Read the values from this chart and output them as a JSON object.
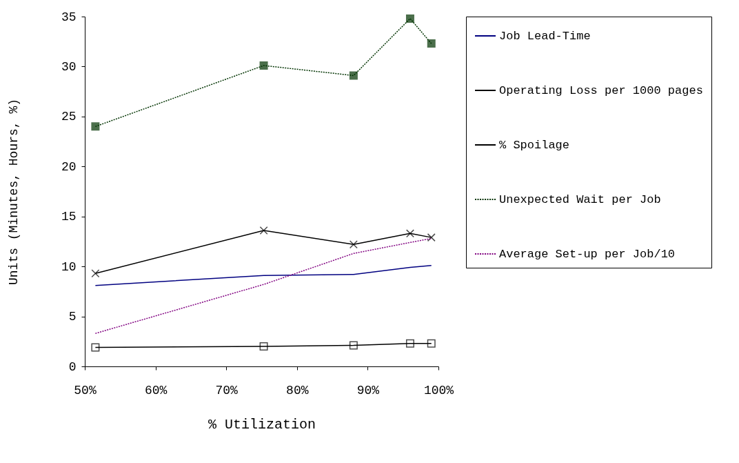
{
  "chart_data": {
    "type": "line",
    "xlabel": "% Utilization",
    "ylabel": "Units (Minutes, Hours, %)",
    "xlim": [
      50,
      100
    ],
    "xticks": [
      {
        "value": 50,
        "label": "50%"
      },
      {
        "value": 60,
        "label": "60%"
      },
      {
        "value": 70,
        "label": "70%"
      },
      {
        "value": 80,
        "label": "80%"
      },
      {
        "value": 90,
        "label": "90%"
      },
      {
        "value": 100,
        "label": "100%"
      }
    ],
    "ylim": [
      0,
      35
    ],
    "yticks": [
      0,
      5,
      10,
      15,
      20,
      25,
      30,
      35
    ],
    "grid": false,
    "legend": "right",
    "x": [
      51.5,
      75.3,
      88,
      96,
      99
    ],
    "series": [
      {
        "name": "Job Lead-Time",
        "color": "#000080",
        "line_style": "solid",
        "marker": "none",
        "values": [
          8.1,
          9.1,
          9.2,
          9.9,
          10.1
        ]
      },
      {
        "name": " Operating Loss per 1000 pages",
        "color": "#000000",
        "line_style": "solid",
        "marker": "cross",
        "values": [
          9.3,
          13.6,
          12.2,
          13.3,
          12.9
        ]
      },
      {
        "name": "% Spoilage",
        "color": "#000000",
        "line_style": "solid",
        "marker": "square",
        "values": [
          1.9,
          2.0,
          2.1,
          2.3,
          2.3
        ]
      },
      {
        "name": "Unexpected Wait per Job",
        "color": "#003300",
        "line_style": "dotted",
        "marker": "square",
        "values": [
          24.0,
          30.1,
          29.1,
          34.8,
          32.3
        ]
      },
      {
        "name": "Average Set-up per Job/10",
        "color": "#800080",
        "line_style": "dotted",
        "marker": "none",
        "values": [
          3.3,
          8.2,
          11.3,
          12.4,
          12.8
        ]
      }
    ]
  }
}
